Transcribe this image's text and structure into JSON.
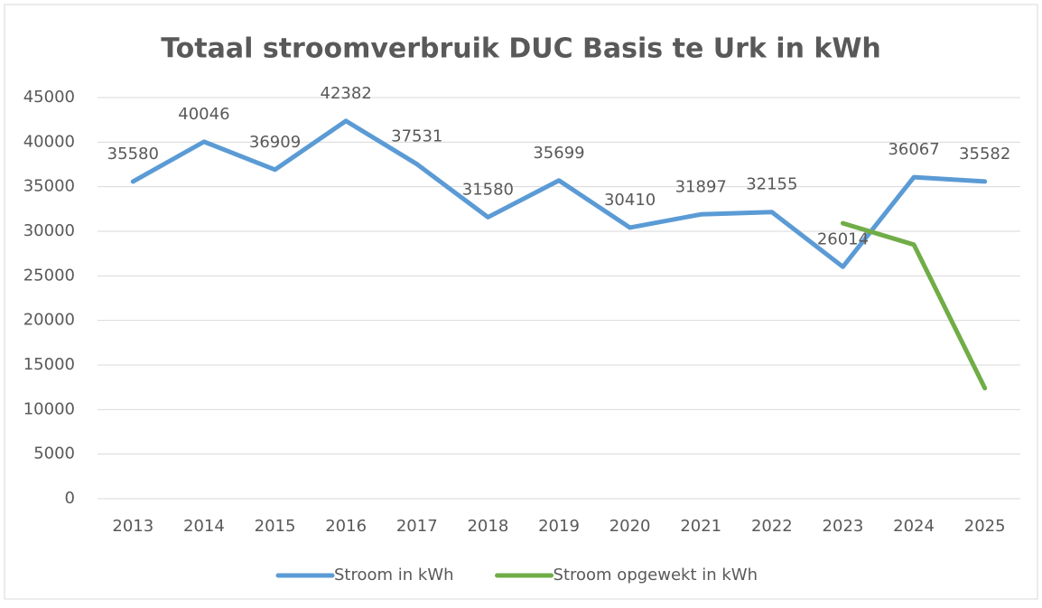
{
  "chart_data": {
    "type": "line",
    "title": "Totaal stroomverbruik DUC Basis te Urk in kWh",
    "categories": [
      "2013",
      "2014",
      "2015",
      "2016",
      "2017",
      "2018",
      "2019",
      "2020",
      "2021",
      "2022",
      "2023",
      "2024",
      "2025"
    ],
    "series": [
      {
        "name": "Stroom in kWh",
        "color": "#5b9bd5",
        "values": [
          35580,
          40046,
          36909,
          42382,
          37531,
          31580,
          35699,
          30410,
          31897,
          32155,
          26014,
          36067,
          35582
        ]
      },
      {
        "name": "Stroom opgewekt in kWh",
        "color": "#70ad47",
        "values": [
          null,
          null,
          null,
          null,
          null,
          null,
          null,
          null,
          null,
          null,
          30900,
          28500,
          12400
        ]
      }
    ],
    "ylim": [
      0,
      45000
    ],
    "yticks": [
      0,
      5000,
      10000,
      15000,
      20000,
      25000,
      30000,
      35000,
      40000,
      45000
    ],
    "grid": true,
    "legend": "bottom",
    "data_labels_series": [
      0
    ]
  }
}
